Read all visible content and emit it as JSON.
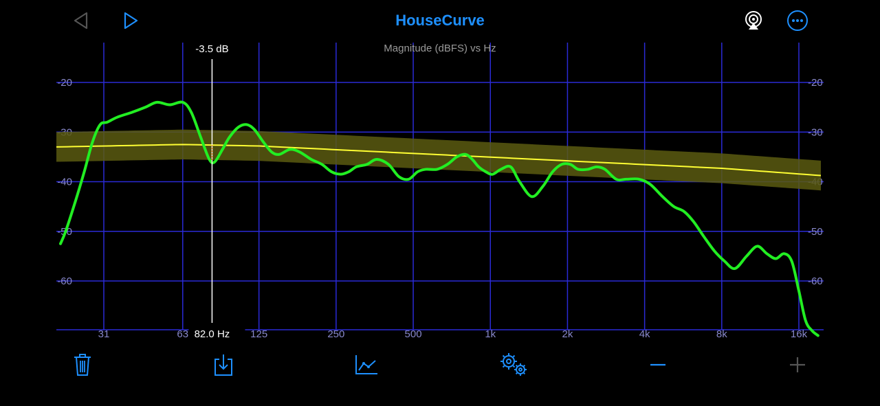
{
  "app": {
    "title": "HouseCurve"
  },
  "toolbar": {
    "back_icon": "back-arrow-icon",
    "play_icon": "play-icon",
    "airplay_icon": "airplay-icon",
    "more_icon": "more-icon"
  },
  "bottom_toolbar": {
    "items": [
      "trash-icon",
      "download-icon",
      "graph-icon",
      "settings-icon",
      "zoom-out-icon",
      "zoom-in-icon"
    ]
  },
  "colors": {
    "accent": "#1e90ff",
    "grid": "#2a2ad6",
    "measurement": "#22ee22",
    "target": "#ffff33",
    "target_band": "#5a5a10",
    "disabled": "#555555"
  },
  "chart_data": {
    "type": "line",
    "title": "Magnitude (dBFS) vs Hz",
    "x_scale": "log",
    "xlim": [
      20,
      20000
    ],
    "ylim": [
      -70,
      -12
    ],
    "x_ticks": [
      31,
      63,
      125,
      250,
      500,
      1000,
      2000,
      4000,
      8000,
      16000
    ],
    "x_tick_labels": [
      "31",
      "63",
      "125",
      "250",
      "500",
      "1k",
      "2k",
      "4k",
      "8k",
      "16k"
    ],
    "y_ticks": [
      -20,
      -30,
      -40,
      -50,
      -60
    ],
    "y_tick_labels": [
      "-20",
      "-30",
      "-40",
      "-50",
      "-60"
    ],
    "cursor": {
      "freq_label": "82.0 Hz",
      "db_label": "-3.5 dB",
      "freq": 82
    },
    "series": [
      {
        "role": "measurement",
        "x": [
          21,
          22,
          24,
          26,
          28,
          30,
          32,
          35,
          40,
          45,
          50,
          56,
          63,
          68,
          74,
          80,
          84,
          90,
          96,
          104,
          112,
          120,
          130,
          140,
          150,
          165,
          180,
          200,
          220,
          240,
          260,
          280,
          300,
          330,
          360,
          400,
          440,
          480,
          520,
          560,
          620,
          680,
          740,
          800,
          850,
          900,
          960,
          1020,
          1100,
          1200,
          1300,
          1450,
          1600,
          1750,
          1900,
          2050,
          2200,
          2400,
          2600,
          2800,
          3100,
          3400,
          3800,
          4200,
          4700,
          5200,
          5700,
          6200,
          6800,
          7500,
          8200,
          9000,
          10000,
          11000,
          12000,
          13000,
          14000,
          15000,
          16000,
          17000,
          18000,
          19000
        ],
        "y": [
          -52.5,
          -50,
          -44,
          -38,
          -32,
          -28.5,
          -28,
          -27,
          -26,
          -25,
          -24,
          -24.5,
          -24,
          -26,
          -31,
          -35.5,
          -36,
          -33.5,
          -31,
          -29,
          -28.5,
          -29.5,
          -32,
          -34,
          -34.5,
          -33.5,
          -34,
          -35.5,
          -36.5,
          -38,
          -38.5,
          -38,
          -37,
          -36.5,
          -35.5,
          -36.5,
          -39,
          -39.5,
          -38,
          -37.5,
          -37.5,
          -36.5,
          -35,
          -34.5,
          -35.5,
          -37,
          -38,
          -38.5,
          -37.5,
          -37,
          -40,
          -43,
          -41,
          -38,
          -36.5,
          -36.5,
          -37.5,
          -37.5,
          -37,
          -37.5,
          -39.5,
          -39.5,
          -39.5,
          -40.5,
          -43,
          -45,
          -46,
          -48,
          -51,
          -54,
          -56,
          -57.5,
          -55,
          -53,
          -54.5,
          -55.5,
          -54.5,
          -56,
          -62,
          -68,
          -70,
          -71
        ]
      },
      {
        "role": "target",
        "x": [
          20,
          63,
          125,
          500,
          2000,
          8000,
          20000
        ],
        "y": [
          -33,
          -32.5,
          -32.8,
          -34.3,
          -35.8,
          -37.3,
          -38.8
        ]
      }
    ],
    "target_band_width_db": 3
  }
}
